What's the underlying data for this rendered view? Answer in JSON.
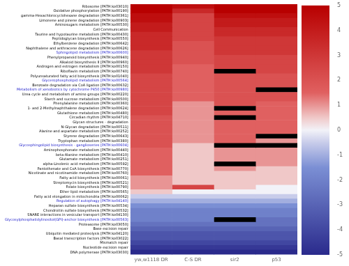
{
  "chart_data": {
    "type": "heatmap",
    "rows": [
      "Ribosome [PATH:ko03010]",
      "Oxidative phosphorylation [PATH:ko00190]",
      "gamma-Hexachlorocyclohexane degradation [PATH:ko00361]",
      "Limonene and pinene degradation [PATH:ko00903]",
      "Aminosugars metabolism [PATH:ko00530]",
      "Cell Communication",
      "Taurine and hypotaurine metabolism [PATH:ko00430]",
      "Peptidoglycan biosynthesis [PATH:ko00550]",
      "Ethylbenzene degradation [PATH:ko00642]",
      "Naphthalene and anthracene degradation [PATH:ko00626]",
      "Sphingolipid metabolism [PATH:ko00600]",
      "Phenylpropanoid biosynthesis [PATH:ko00940]",
      "Alkaloid biosynthesis II [PATH:ko00960]",
      "Androgen and estrogen metabolism [PATH:ko00150]",
      "Riboflavin metabolism [PATH:ko00740]",
      "Polyunsaturated fatty acid biosynthesis [PATH:ko01040]",
      "Glycerophospholipid metabolism [PATH:ko00564]",
      "Benzoate degradation via CoA ligation [PATH:ko00632]",
      "Metabolism of xenobiotics by cytochrome P450 [PATH:ko00980]",
      "Urea cycle and metabolism of amino groups [PATH:ko00220]",
      "Starch and sucrose metabolism [PATH:ko00500]",
      "Phenylalanine metabolism [PATH:ko00360]",
      "1- and 2-Methylnaphthalene degradation [PATH:ko00624]",
      "Glutathione metabolism [PATH:ko00480]",
      "Circadian rhythm [PATH:ko04710]",
      "Glycan structures - degradation",
      "N-Glycan degradation [PATH:ko00511]",
      "Alanine and aspartate metabolism [PATH:ko00252]",
      "Styrene degradation [PATH:ko00643]",
      "Tryptophan metabolism [PATH:ko00380]",
      "Glycosphingolipid biosynthesis - ganglioseries [PATH:ko00604]",
      "Aminophosphonate metabolism [PATH:ko00440]",
      "beta-Alanine metabolism [PATH:ko00410]",
      "Glutamate metabolism [PATH:ko00251]",
      "alpha-Linolenic acid metabolism [PATH:ko00592]",
      "Pantothenate and CoA biosynthesis [PATH:ko00770]",
      "Nicotinate and nicotinamide metabolism [PATH:ko00760]",
      "Fatty acid biosynthesis [PATH:ko00061]",
      "Streptomycin biosynthesis [PATH:ko00521]",
      "Folate biosynthesis [PATH:ko00790]",
      "Ether lipid metabolism [PATH:ko00565]",
      "Fatty acid elongation in mitochondria [PATH:ko00062]",
      "Regulation of autophagy [PATH:ko04140]",
      "Heparan sulfate biosynthesis [PATH:ko00534]",
      "Chondroitin sulfate biosynthesis [PATH:ko00532]",
      "SNARE interactions in vesicular transport [PATH:ko04130]",
      "Glycosylphosphatidylinositol(GPI)-anchor biosynthesis [PATH:ko00563]",
      "Proteasome [PATH:ko03050]",
      "Base excision repair",
      "Ubiquitin mediated proteolysis [PATH:ko04120]",
      "Basal transcription factors [PATH:ko03022]",
      "Mismatch repair",
      "Nucleotide excision repair",
      "DNA polymerase [PATH:ko03030]"
    ],
    "row_label_colors": [
      "#000000",
      "#000000",
      "#000000",
      "#000000",
      "#000000",
      "#000000",
      "#000000",
      "#000000",
      "#000000",
      "#000000",
      "#2222cc",
      "#000000",
      "#000000",
      "#000000",
      "#000000",
      "#000000",
      "#2222cc",
      "#000000",
      "#2222cc",
      "#000000",
      "#000000",
      "#000000",
      "#000000",
      "#000000",
      "#000000",
      "#000000",
      "#000000",
      "#000000",
      "#000000",
      "#000000",
      "#2222cc",
      "#000000",
      "#000000",
      "#000000",
      "#000000",
      "#000000",
      "#000000",
      "#000000",
      "#000000",
      "#000000",
      "#000000",
      "#000000",
      "#2222cc",
      "#000000",
      "#000000",
      "#000000",
      "#2222cc",
      "#000000",
      "#000000",
      "#000000",
      "#000000",
      "#000000",
      "#000000",
      "#000000"
    ],
    "categories": [
      "yw,w1118 DR",
      "C-S DR",
      "sir2",
      "p53"
    ],
    "cells": [
      [
        5.0,
        4.5,
        5.0,
        5.0
      ],
      [
        5.0,
        3.5,
        5.0,
        5.0
      ],
      [
        4.5,
        2.5,
        4.5,
        4.5
      ],
      [
        4.5,
        2.5,
        4.0,
        4.0
      ],
      [
        4.0,
        2.5,
        4.0,
        4.0
      ],
      [
        4.0,
        2.5,
        3.5,
        3.5
      ],
      [
        3.5,
        2.5,
        3.5,
        3.5
      ],
      [
        3.5,
        2.5,
        3.0,
        3.0
      ],
      [
        3.5,
        2.0,
        3.0,
        3.0
      ],
      [
        3.5,
        2.0,
        3.0,
        3.0
      ],
      [
        3.0,
        2.0,
        3.0,
        3.0
      ],
      [
        3.0,
        2.0,
        2.5,
        2.5
      ],
      [
        3.0,
        2.0,
        2.5,
        2.5
      ],
      [
        3.0,
        1.5,
        2.5,
        2.5
      ],
      [
        3.0,
        1.5,
        null,
        2.5
      ],
      [
        2.5,
        1.5,
        2.0,
        2.0
      ],
      [
        2.5,
        1.5,
        2.0,
        2.0
      ],
      [
        2.5,
        1.5,
        2.0,
        2.0
      ],
      [
        2.5,
        1.5,
        2.0,
        null
      ],
      [
        2.5,
        1.5,
        2.0,
        2.0
      ],
      [
        2.5,
        1.5,
        2.0,
        2.0
      ],
      [
        2.5,
        1.0,
        2.0,
        1.5
      ],
      [
        2.5,
        1.0,
        null,
        1.5
      ],
      [
        2.5,
        1.0,
        1.5,
        1.5
      ],
      [
        2.0,
        1.0,
        null,
        1.5
      ],
      [
        2.0,
        1.0,
        1.5,
        1.5
      ],
      [
        2.0,
        1.0,
        1.5,
        1.5
      ],
      [
        2.0,
        1.0,
        1.5,
        1.5
      ],
      [
        2.0,
        1.0,
        1.5,
        null
      ],
      [
        2.0,
        1.0,
        1.5,
        1.0
      ],
      [
        2.0,
        0.5,
        null,
        null
      ],
      [
        1.5,
        0.5,
        1.0,
        1.0
      ],
      [
        1.5,
        0.5,
        1.0,
        1.0
      ],
      [
        1.5,
        0.5,
        1.0,
        1.0
      ],
      [
        1.5,
        0.5,
        null,
        1.0
      ],
      [
        1.5,
        0.5,
        1.0,
        0.5
      ],
      [
        1.5,
        0.5,
        0.5,
        0.5
      ],
      [
        1.0,
        0.5,
        0.5,
        0.5
      ],
      [
        1.0,
        0.5,
        0.5,
        0.5
      ],
      [
        1.0,
        2.5,
        0.5,
        0.0
      ],
      [
        0.5,
        0.0,
        0.0,
        0.0
      ],
      [
        -0.5,
        -0.5,
        -0.5,
        -0.5
      ],
      [
        -1.0,
        -1.0,
        -1.0,
        -1.0
      ],
      [
        -1.5,
        -1.5,
        -1.5,
        -1.5
      ],
      [
        -2.0,
        -2.0,
        -2.0,
        -2.0
      ],
      [
        -2.0,
        -2.0,
        -2.0,
        -2.0
      ],
      [
        -2.0,
        -2.0,
        null,
        -2.5
      ],
      [
        -2.5,
        -2.5,
        -2.5,
        -2.5
      ],
      [
        -3.0,
        -3.0,
        -3.0,
        -3.0
      ],
      [
        -3.5,
        -3.5,
        -3.5,
        -3.5
      ],
      [
        -3.5,
        -3.5,
        -3.5,
        -3.5
      ],
      [
        -4.0,
        -4.0,
        -4.0,
        -4.0
      ],
      [
        -4.5,
        -4.5,
        -4.5,
        -4.5
      ],
      [
        -5.0,
        -5.0,
        -5.0,
        -5.0
      ]
    ],
    "missing_color": "#000000",
    "colorbar_range": [
      -5,
      5
    ],
    "colorbar_ticks": [
      -5,
      -4,
      -3,
      -2,
      -1,
      0,
      1,
      2,
      3,
      4,
      5
    ],
    "colorscale": [
      [
        0.0,
        "#2a2a8c"
      ],
      [
        0.35,
        "#7b8fd4"
      ],
      [
        0.45,
        "#c8ccea"
      ],
      [
        0.5,
        "#f2f2f8"
      ],
      [
        0.55,
        "#f0c8c8"
      ],
      [
        0.65,
        "#e06060"
      ],
      [
        1.0,
        "#b80000"
      ]
    ],
    "grid": false
  }
}
